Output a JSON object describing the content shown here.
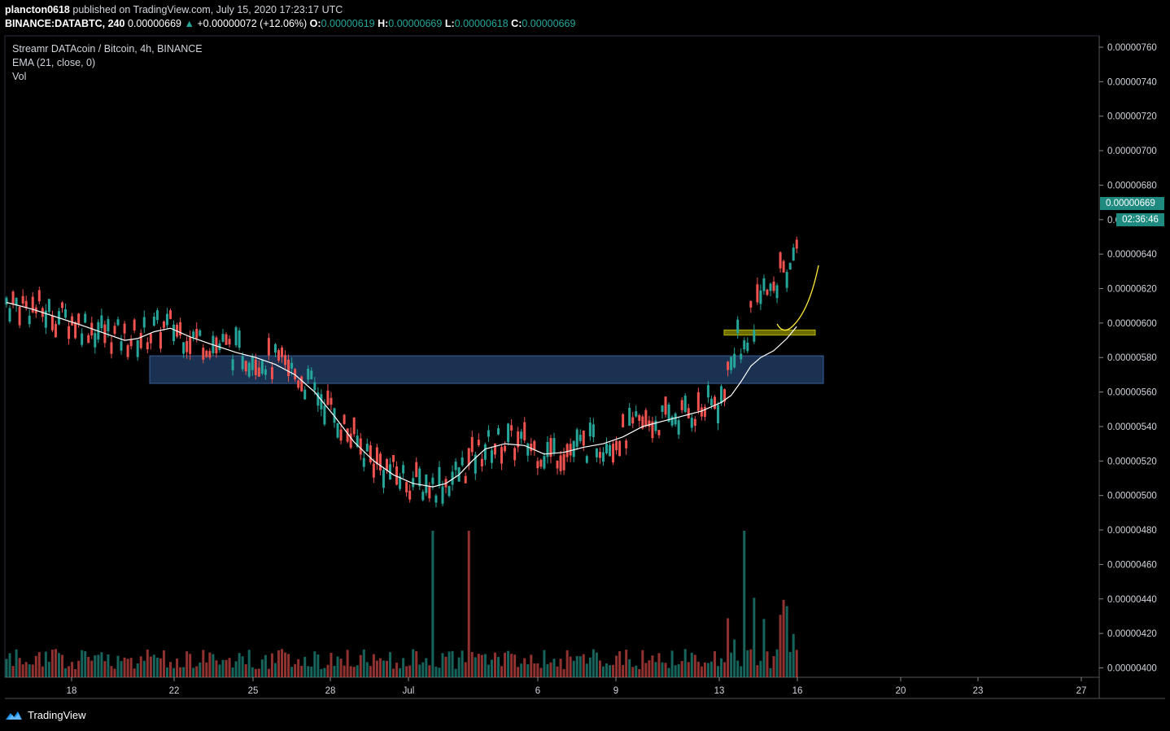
{
  "header": {
    "author": "plancton0618",
    "published": "published on TradingView.com, July 15, 2020 17:23:17 UTC"
  },
  "symbol_line": {
    "symbol": "BINANCE:DATABTC, 240",
    "last": "0.00000669",
    "change": "+0.00000072 (+12.06%)",
    "o_label": "O:",
    "o": "0.00000619",
    "h_label": "H:",
    "h": "0.00000669",
    "l_label": "L:",
    "l": "0.00000618",
    "c_label": "C:",
    "c": "0.00000669"
  },
  "legend": {
    "title": "Streamr DATAcoin / Bitcoin, 4h, BINANCE",
    "ema": "EMA (21, close, 0)",
    "vol": "Vol"
  },
  "last_price_tag": "0.00000669",
  "countdown_tag": "02:36:46",
  "brand": "TradingView",
  "colors": {
    "up": "#26a69a",
    "down": "#ef5350",
    "ema": "#ffffff",
    "zone": "#1e3a5f",
    "yellow_zone": "#8a8a00",
    "yellow_curve": "#ffeb3b"
  },
  "chart_data": {
    "type": "candlestick",
    "y_axis_ticks": [
      "0.00000760",
      "0.00000740",
      "0.00000720",
      "0.00000700",
      "0.00000680",
      "0.00000660",
      "0.00000640",
      "0.00000620",
      "0.00000600",
      "0.00000580",
      "0.00000560",
      "0.00000540",
      "0.00000520",
      "0.00000500",
      "0.00000480",
      "0.00000460",
      "0.00000440",
      "0.00000420",
      "0.00000400"
    ],
    "x_axis_ticks": [
      "18",
      "22",
      "25",
      "28",
      "Jul",
      "6",
      "9",
      "13",
      "16",
      "20",
      "23",
      "27"
    ],
    "price_range": [
      4e-06,
      7.6e-06
    ],
    "series": [
      {
        "name": "EMA (21, close, 0)",
        "points": [
          [
            0,
            6.12e-06
          ],
          [
            8,
            6.08e-06
          ],
          [
            16,
            6.03e-06
          ],
          [
            24,
            5.98e-06
          ],
          [
            30,
            5.94e-06
          ],
          [
            36,
            5.9e-06
          ],
          [
            40,
            5.91e-06
          ],
          [
            45,
            5.95e-06
          ],
          [
            50,
            5.97e-06
          ],
          [
            56,
            5.92e-06
          ],
          [
            62,
            5.88e-06
          ],
          [
            70,
            5.83e-06
          ],
          [
            76,
            5.8e-06
          ],
          [
            82,
            5.76e-06
          ],
          [
            88,
            5.7e-06
          ],
          [
            94,
            5.6e-06
          ],
          [
            100,
            5.46e-06
          ],
          [
            106,
            5.31e-06
          ],
          [
            112,
            5.2e-06
          ],
          [
            118,
            5.12e-06
          ],
          [
            124,
            5.07e-06
          ],
          [
            130,
            5.05e-06
          ],
          [
            134,
            5.07e-06
          ],
          [
            138,
            5.12e-06
          ],
          [
            142,
            5.2e-06
          ],
          [
            146,
            5.27e-06
          ],
          [
            152,
            5.3e-06
          ],
          [
            158,
            5.29e-06
          ],
          [
            164,
            5.24e-06
          ],
          [
            170,
            5.25e-06
          ],
          [
            176,
            5.28e-06
          ],
          [
            182,
            5.3e-06
          ],
          [
            188,
            5.34e-06
          ],
          [
            194,
            5.4e-06
          ],
          [
            200,
            5.43e-06
          ],
          [
            206,
            5.46e-06
          ],
          [
            212,
            5.49e-06
          ],
          [
            218,
            5.54e-06
          ],
          [
            221,
            5.58e-06
          ],
          [
            224,
            5.66e-06
          ],
          [
            227,
            5.75e-06
          ],
          [
            230,
            5.8e-06
          ],
          [
            234,
            5.84e-06
          ],
          [
            238,
            5.91e-06
          ],
          [
            241,
            5.98e-06
          ]
        ]
      }
    ],
    "annotations": [
      {
        "type": "zone",
        "y_range": [
          5.65e-06,
          5.81e-06
        ]
      },
      {
        "type": "zone",
        "y_range": [
          5.93e-06,
          5.96e-06
        ]
      },
      {
        "type": "projection-curve"
      }
    ]
  }
}
